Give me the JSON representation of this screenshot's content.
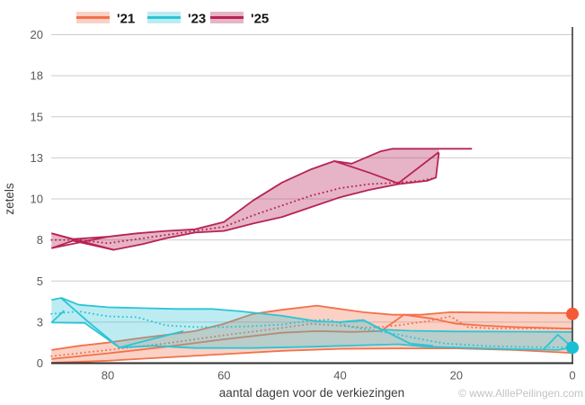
{
  "footer": {
    "copyright": "© www.AlllePeilingen.com"
  },
  "legend": {
    "items": [
      {
        "label": "'21"
      },
      {
        "label": "'23"
      },
      {
        "label": "'25"
      }
    ]
  },
  "chart_data": {
    "type": "line",
    "title": "",
    "xlabel": "aantal dagen voor de verkiezingen",
    "ylabel": "zetels",
    "x_axis": {
      "reversed": true,
      "domain_days": [
        89.75,
        0
      ],
      "tick_values": [
        80,
        60,
        40,
        20,
        0
      ],
      "tick_labels": [
        "80",
        "60",
        "40",
        "20",
        "0"
      ]
    },
    "y_axis": {
      "domain_seats": [
        0,
        20.6
      ],
      "tick_values": [
        0,
        2.5,
        5,
        7.5,
        10,
        12.5,
        15,
        17.5,
        20
      ],
      "tick_labels": [
        "0",
        "3",
        "5",
        "8",
        "10",
        "13",
        "15",
        "18",
        "20"
      ],
      "grid": true,
      "grid_color": "#cdcdcd"
    },
    "spine_color": "#2e2e2e",
    "series": [
      {
        "name": "'21",
        "line_color": "#F3714B",
        "fill_color": "rgba(244,116,78,0.33)",
        "dot_color": "#F45B35",
        "band_end_day": 0,
        "end_dot": {
          "day": 0,
          "value": 3.0
        },
        "max": [
          [
            89.7,
            0.8
          ],
          [
            85,
            1.05
          ],
          [
            80,
            1.25
          ],
          [
            75,
            1.5
          ],
          [
            70,
            1.72
          ],
          [
            65,
            1.95
          ],
          [
            60,
            2.4
          ],
          [
            55,
            3.0
          ],
          [
            50,
            3.25
          ],
          [
            44,
            3.5
          ],
          [
            40,
            3.3
          ],
          [
            36,
            3.1
          ],
          [
            31,
            2.95
          ],
          [
            26,
            2.95
          ],
          [
            21,
            3.1
          ],
          [
            10,
            3.07
          ],
          [
            0,
            3.05
          ]
        ],
        "min": [
          [
            89.7,
            0.03
          ],
          [
            80,
            0.15
          ],
          [
            70,
            0.35
          ],
          [
            60,
            0.55
          ],
          [
            50,
            0.75
          ],
          [
            40,
            0.87
          ],
          [
            30,
            0.9
          ],
          [
            20,
            0.9
          ],
          [
            10,
            0.8
          ],
          [
            0,
            0.62
          ]
        ],
        "avg": [
          [
            89.7,
            0.42
          ],
          [
            80,
            0.8
          ],
          [
            70,
            1.2
          ],
          [
            60,
            1.7
          ],
          [
            50,
            2.15
          ],
          [
            45,
            2.4
          ],
          [
            40,
            2.28
          ],
          [
            35,
            2.15
          ],
          [
            30,
            2.3
          ],
          [
            25,
            2.55
          ],
          [
            21,
            2.85
          ],
          [
            18,
            2.2
          ],
          [
            14,
            2.12
          ],
          [
            0,
            2.1
          ]
        ],
        "extra_lines": [
          [
            [
              89.7,
              0.25
            ],
            [
              80,
              0.6
            ],
            [
              70,
              1.0
            ],
            [
              60,
              1.45
            ],
            [
              50,
              1.85
            ],
            [
              44,
              1.95
            ],
            [
              38,
              1.9
            ],
            [
              33,
              1.95
            ],
            [
              29,
              2.95
            ],
            [
              24,
              2.7
            ],
            [
              20,
              2.4
            ],
            [
              15,
              2.28
            ],
            [
              10,
              2.2
            ],
            [
              0,
              2.1
            ]
          ]
        ]
      },
      {
        "name": "'23",
        "line_color": "#2BC5D6",
        "fill_color": "rgba(46,197,214,0.32)",
        "dot_color": "#1BBFD2",
        "band_end_day": 0,
        "end_dot": {
          "day": 0,
          "value": 0.95
        },
        "max": [
          [
            89.7,
            3.85
          ],
          [
            88,
            3.97
          ],
          [
            85,
            3.55
          ],
          [
            80,
            3.4
          ],
          [
            74,
            3.35
          ],
          [
            68,
            3.3
          ],
          [
            62,
            3.3
          ],
          [
            57,
            3.15
          ],
          [
            50,
            2.88
          ],
          [
            44,
            2.55
          ],
          [
            40,
            2.5
          ],
          [
            36,
            2.62
          ],
          [
            33,
            2.05
          ],
          [
            28,
            1.97
          ],
          [
            20,
            1.93
          ],
          [
            10,
            1.92
          ],
          [
            0,
            1.9
          ]
        ],
        "min": [
          [
            89.7,
            2.47
          ],
          [
            84,
            2.45
          ],
          [
            78,
            0.95
          ],
          [
            72,
            1.05
          ],
          [
            65,
            0.92
          ],
          [
            55,
            0.92
          ],
          [
            45,
            1.0
          ],
          [
            40,
            1.05
          ],
          [
            35,
            1.1
          ],
          [
            30,
            1.15
          ],
          [
            25,
            1.0
          ],
          [
            20,
            0.95
          ],
          [
            15,
            0.9
          ],
          [
            10,
            0.85
          ],
          [
            5,
            0.82
          ],
          [
            2.5,
            0.8
          ],
          [
            0,
            0.95
          ]
        ],
        "avg": [
          [
            89.7,
            3.0
          ],
          [
            85,
            3.15
          ],
          [
            80,
            2.85
          ],
          [
            75,
            2.8
          ],
          [
            70,
            2.3
          ],
          [
            65,
            2.2
          ],
          [
            60,
            2.2
          ],
          [
            55,
            2.25
          ],
          [
            50,
            2.35
          ],
          [
            45,
            2.6
          ],
          [
            42,
            2.65
          ],
          [
            38,
            2.2
          ],
          [
            34,
            1.97
          ],
          [
            30,
            1.75
          ],
          [
            26,
            1.45
          ],
          [
            22,
            1.2
          ],
          [
            15,
            1.05
          ],
          [
            10,
            1.0
          ],
          [
            0,
            0.95
          ]
        ],
        "extra_lines": [
          [
            [
              88,
              3.95
            ],
            [
              83,
              2.4
            ],
            [
              78,
              0.95
            ],
            [
              72,
              1.5
            ],
            [
              67,
              1.95
            ]
          ],
          [
            [
              89.7,
              2.47
            ],
            [
              87.5,
              3.2
            ]
          ],
          [
            [
              40,
              2.5
            ],
            [
              36,
              2.62
            ],
            [
              28,
              1.2
            ],
            [
              24,
              1.05
            ]
          ],
          [
            [
              5,
              0.82
            ],
            [
              2.5,
              1.73
            ],
            [
              0,
              0.95
            ]
          ]
        ]
      },
      {
        "name": "'25",
        "line_color": "#B72355",
        "fill_color": "rgba(183,36,87,0.34)",
        "dot_color": "#B72355",
        "band_end_day": 23,
        "end_dot": null,
        "max": [
          [
            89.7,
            7.9
          ],
          [
            86,
            7.55
          ],
          [
            80,
            7.7
          ],
          [
            75,
            7.9
          ],
          [
            70,
            8.05
          ],
          [
            65,
            8.15
          ],
          [
            60,
            8.6
          ],
          [
            55,
            9.9
          ],
          [
            50,
            11.0
          ],
          [
            45,
            11.8
          ],
          [
            41,
            12.3
          ],
          [
            38,
            12.15
          ],
          [
            33,
            12.9
          ],
          [
            31,
            13.05
          ],
          [
            23,
            13.05
          ],
          [
            17.3,
            13.05
          ]
        ],
        "min": [
          [
            89.7,
            7.0
          ],
          [
            86,
            7.45
          ],
          [
            79,
            6.9
          ],
          [
            74,
            7.25
          ],
          [
            70,
            7.6
          ],
          [
            65,
            7.95
          ],
          [
            60,
            8.05
          ],
          [
            55,
            8.5
          ],
          [
            50,
            8.9
          ],
          [
            45,
            9.5
          ],
          [
            40,
            10.1
          ],
          [
            35,
            10.55
          ],
          [
            30,
            10.9
          ],
          [
            25,
            11.1
          ],
          [
            23.5,
            11.3
          ],
          [
            23,
            12.8
          ]
        ],
        "avg": [
          [
            89.7,
            7.5
          ],
          [
            85,
            7.5
          ],
          [
            80,
            7.3
          ],
          [
            75,
            7.55
          ],
          [
            70,
            7.8
          ],
          [
            65,
            8.05
          ],
          [
            60,
            8.3
          ],
          [
            55,
            9.0
          ],
          [
            50,
            9.6
          ],
          [
            45,
            10.2
          ],
          [
            40,
            10.65
          ],
          [
            35,
            10.9
          ],
          [
            30,
            11.0
          ],
          [
            26,
            11.1
          ],
          [
            24,
            11.25
          ]
        ],
        "extra_lines": [
          [
            [
              89.7,
              7.9
            ],
            [
              79,
              6.9
            ]
          ],
          [
            [
              89.7,
              7.0
            ],
            [
              80,
              7.7
            ]
          ],
          [
            [
              41,
              12.3
            ],
            [
              35,
              11.6
            ],
            [
              30,
              10.95
            ],
            [
              23,
              12.85
            ]
          ]
        ]
      }
    ]
  }
}
